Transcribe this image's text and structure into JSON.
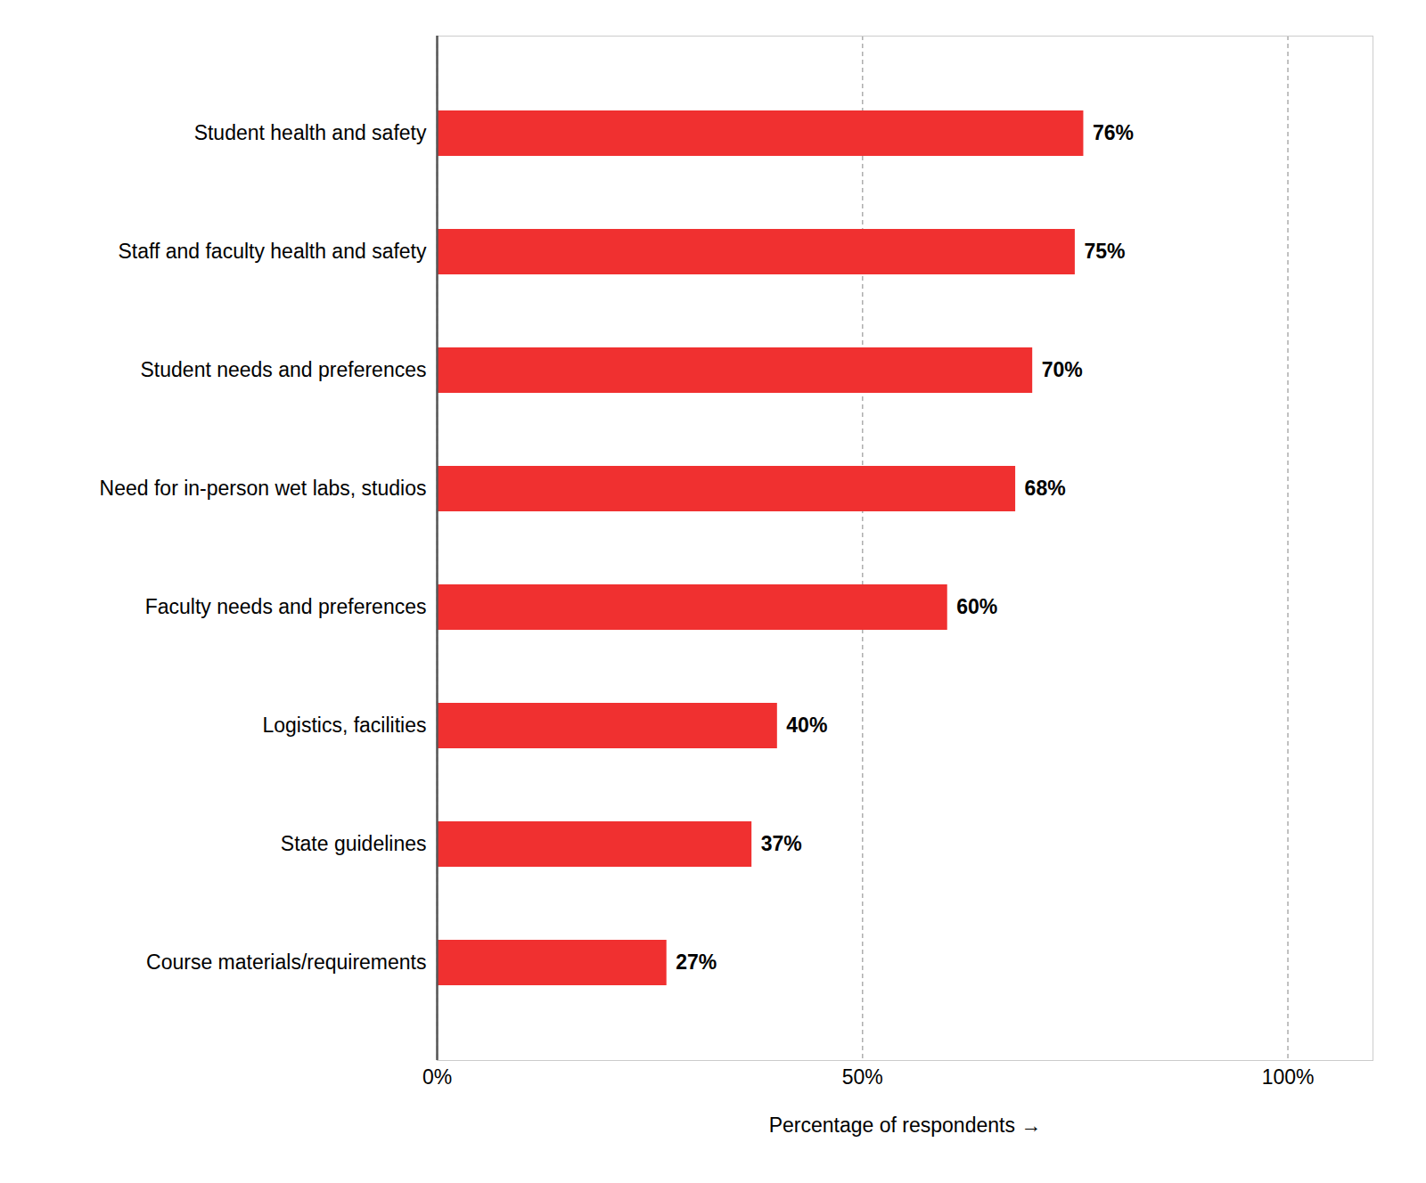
{
  "chart_data": {
    "type": "bar",
    "orientation": "horizontal",
    "categories": [
      "Course materials/requirements",
      "State guidelines",
      "Logistics, facilities",
      "Faculty needs and preferences",
      "Need for in-person wet labs, studios",
      "Student needs and preferences",
      "Staff and faculty health and safety",
      "Student health and safety"
    ],
    "values": [
      27,
      37,
      40,
      60,
      68,
      70,
      75,
      76
    ],
    "value_labels": [
      "27%",
      "37%",
      "40%",
      "60%",
      "68%",
      "70%",
      "75%",
      "76%"
    ],
    "data_labels": true,
    "color": "#f03030",
    "xlabel": "Percentage of respondents",
    "xlim": [
      0,
      110
    ],
    "xticks": [
      {
        "value": 0,
        "label": "0%"
      },
      {
        "value": 50,
        "label": "50%"
      },
      {
        "value": 100,
        "label": "100%"
      }
    ],
    "grid": true
  }
}
